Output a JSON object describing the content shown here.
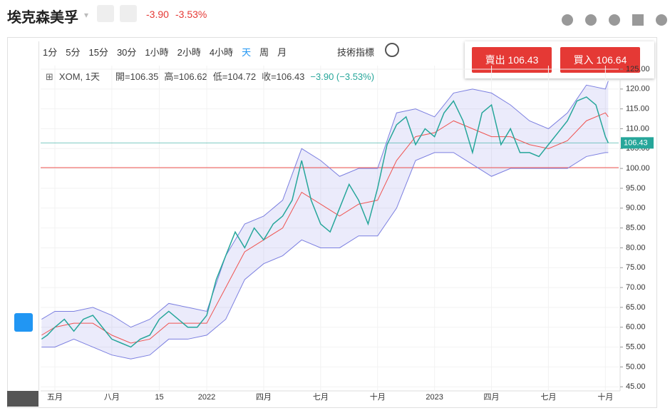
{
  "header": {
    "title": "埃克森美孚",
    "change": "-3.90",
    "change_pct": "-3.53%"
  },
  "toolbar": {
    "intervals": [
      "1分",
      "5分",
      "15分",
      "30分",
      "1小時",
      "2小時",
      "4小時",
      "天",
      "周",
      "月"
    ],
    "indicators": "技術指標"
  },
  "trade": {
    "sell": "賣出 106.43",
    "buy": "買入 106.64"
  },
  "legend": {
    "symbol": "XOM, 1天",
    "open": "開=106.35",
    "high": "高=106.62",
    "low": "低=104.72",
    "close": "收=106.43",
    "change": "−3.90 (−3.53%)"
  },
  "chart_data": {
    "type": "line",
    "xlim": [
      3.25,
      33.7
    ],
    "xticks": [
      {
        "value": 4,
        "label": "五月"
      },
      {
        "value": 7,
        "label": "八月"
      },
      {
        "value": 9.5,
        "label": "15"
      },
      {
        "value": 12,
        "label": "2022"
      },
      {
        "value": 15,
        "label": "四月"
      },
      {
        "value": 18,
        "label": "七月"
      },
      {
        "value": 21,
        "label": "十月"
      },
      {
        "value": 24,
        "label": "2023"
      },
      {
        "value": 27,
        "label": "四月"
      },
      {
        "value": 30,
        "label": "七月"
      },
      {
        "value": 33,
        "label": "十月"
      }
    ],
    "ylim": [
      44.5,
      125.9
    ],
    "yticks": [
      {
        "value": 125,
        "label": "125.00"
      },
      {
        "value": 120,
        "label": "120.00"
      },
      {
        "value": 115,
        "label": "115.00"
      },
      {
        "value": 110,
        "label": "110.00"
      },
      {
        "value": 105,
        "label": "105.00"
      },
      {
        "value": 100,
        "label": "100.00"
      },
      {
        "value": 95,
        "label": "95.00"
      },
      {
        "value": 90,
        "label": "90.00"
      },
      {
        "value": 85,
        "label": "85.00"
      },
      {
        "value": 80,
        "label": "80.00"
      },
      {
        "value": 75,
        "label": "75.00"
      },
      {
        "value": 70,
        "label": "70.00"
      },
      {
        "value": 65,
        "label": "65.00"
      },
      {
        "value": 60,
        "label": "60.00"
      },
      {
        "value": 55,
        "label": "55.00"
      },
      {
        "value": 50,
        "label": "50.00"
      },
      {
        "value": 45,
        "label": "45.00"
      }
    ],
    "last_price": {
      "value": 106.43,
      "label": "106.43",
      "color": "#26a69a"
    },
    "level_line": {
      "value": 100.2,
      "color": "#ef5350"
    },
    "band_fill": "rgba(120,120,230,0.15)",
    "series": [
      {
        "color": "#26a69a",
        "x": [
          3.3,
          3.6,
          4,
          4.5,
          5,
          5.5,
          6,
          6.5,
          7,
          7.5,
          8,
          8.5,
          9,
          9.5,
          10,
          10.5,
          11,
          11.5,
          12,
          12.5,
          13,
          13.5,
          14,
          14.5,
          15,
          15.5,
          16,
          16.5,
          17,
          17.5,
          18,
          18.5,
          19,
          19.5,
          20,
          20.5,
          21,
          21.5,
          22,
          22.5,
          23,
          23.5,
          24,
          24.5,
          25,
          25.5,
          26,
          26.5,
          27,
          27.5,
          28,
          28.5,
          29,
          29.5,
          30,
          30.5,
          31,
          31.5,
          32,
          32.5,
          33,
          33.15
        ],
        "values": [
          57,
          58,
          60,
          62,
          59,
          62,
          63,
          60,
          57,
          56,
          55,
          57,
          58,
          62,
          64,
          62,
          60,
          60,
          63,
          72,
          78,
          84,
          80,
          85,
          82,
          86,
          88,
          92,
          102,
          92,
          86,
          84,
          90,
          96,
          92,
          86,
          95,
          106,
          111,
          113,
          106,
          110,
          108,
          114,
          117,
          112,
          104,
          114,
          116,
          106,
          110,
          104,
          104,
          103,
          106,
          109,
          112,
          117,
          118,
          116,
          108,
          106.43
        ]
      },
      {
        "color": "#7b7fe0",
        "x": [
          3.3,
          4,
          5,
          6,
          7,
          8,
          9,
          10,
          11,
          12,
          13,
          14,
          15,
          16,
          17,
          18,
          19,
          20,
          21,
          22,
          23,
          24,
          25,
          26,
          27,
          28,
          29,
          30,
          31,
          32,
          33,
          33.15
        ],
        "values": [
          62,
          64,
          64,
          65,
          63,
          60,
          62,
          66,
          65,
          64,
          78,
          86,
          88,
          92,
          105,
          102,
          98,
          100,
          100,
          114,
          115,
          113,
          119,
          120,
          119,
          116,
          112,
          110,
          114,
          121,
          120,
          122
        ]
      },
      {
        "color": "#7b7fe0",
        "x": [
          3.3,
          4,
          5,
          6,
          7,
          8,
          9,
          10,
          11,
          12,
          13,
          14,
          15,
          16,
          17,
          18,
          19,
          20,
          21,
          22,
          23,
          24,
          25,
          26,
          27,
          28,
          29,
          30,
          31,
          32,
          33,
          33.15
        ],
        "values": [
          55,
          55,
          57,
          55,
          53,
          52,
          53,
          57,
          57,
          58,
          62,
          72,
          76,
          78,
          82,
          80,
          80,
          83,
          83,
          90,
          102,
          104,
          104,
          101,
          98,
          100,
          100,
          100,
          100,
          103,
          104,
          104
        ]
      },
      {
        "color": "#ef5350",
        "x": [
          3.3,
          4,
          5,
          6,
          7,
          8,
          9,
          10,
          11,
          12,
          13,
          14,
          15,
          16,
          17,
          18,
          19,
          20,
          21,
          22,
          23,
          24,
          25,
          26,
          27,
          28,
          29,
          30,
          31,
          32,
          33,
          33.15
        ],
        "values": [
          58,
          60,
          61,
          61,
          58,
          56,
          57,
          61,
          61,
          61,
          70,
          79,
          82,
          85,
          94,
          91,
          88,
          91,
          92,
          102,
          108,
          109,
          112,
          110,
          108,
          108,
          106,
          105,
          107,
          112,
          114,
          113
        ]
      }
    ]
  }
}
